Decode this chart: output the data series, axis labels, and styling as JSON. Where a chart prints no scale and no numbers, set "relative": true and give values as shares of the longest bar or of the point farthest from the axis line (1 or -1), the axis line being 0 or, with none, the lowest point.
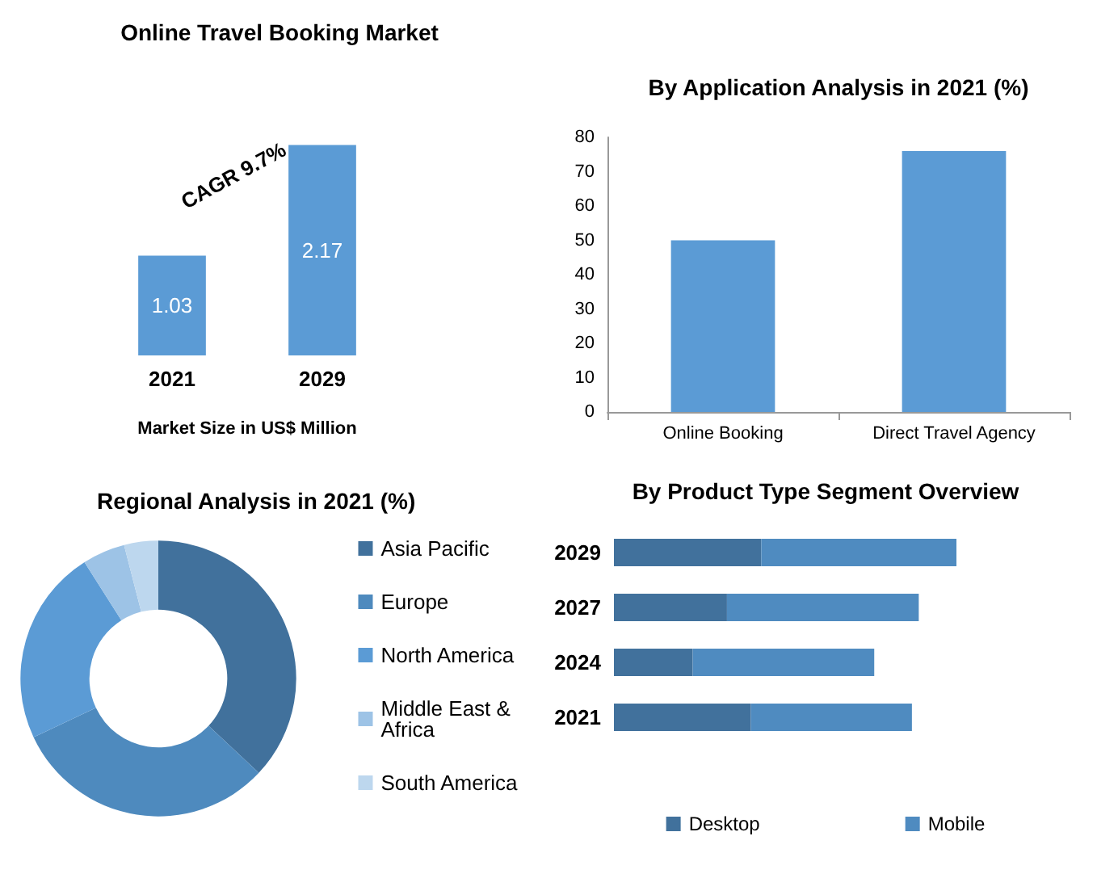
{
  "chart_data": [
    {
      "type": "bar",
      "title": "Online Travel Booking Market",
      "xlabel": "Market Size in US$ Million",
      "categories": [
        "2021",
        "2029"
      ],
      "values": [
        1.03,
        2.17
      ],
      "color": "#5b9bd5",
      "data_labels": true,
      "annotations": [
        "CAGR 9.7%"
      ]
    },
    {
      "type": "bar",
      "title": "By Application Analysis in 2021 (%)",
      "categories": [
        "Online Booking",
        "Direct Travel Agency"
      ],
      "values": [
        50,
        76
      ],
      "color": "#5b9bd5",
      "ylim": [
        0,
        80
      ],
      "yticks": [
        0,
        10,
        20,
        30,
        40,
        50,
        60,
        70,
        80
      ]
    },
    {
      "type": "donut",
      "title": "Regional Analysis in 2021 (%)",
      "categories": [
        "Asia Pacific",
        "Europe",
        "North America",
        "Middle East & Africa",
        "South America"
      ],
      "values": [
        37,
        31,
        23,
        5,
        4
      ],
      "colors": [
        "#41719c",
        "#4e8abe",
        "#5b9bd5",
        "#9dc3e6",
        "#bdd7ee"
      ],
      "legend": "right"
    },
    {
      "type": "bar",
      "title": "By Product Type Segment Overview",
      "orientation": "horizontal",
      "stacked": true,
      "relative": true,
      "legend": "bottom",
      "categories": [
        "2029",
        "2027",
        "2024",
        "2021"
      ],
      "series": [
        {
          "name": "Desktop",
          "color": "#41719c",
          "values": [
            0.43,
            0.33,
            0.23,
            0.4
          ]
        },
        {
          "name": "Mobile",
          "color": "#4f8bc0",
          "values": [
            0.57,
            0.56,
            0.53,
            0.47
          ]
        }
      ]
    }
  ]
}
